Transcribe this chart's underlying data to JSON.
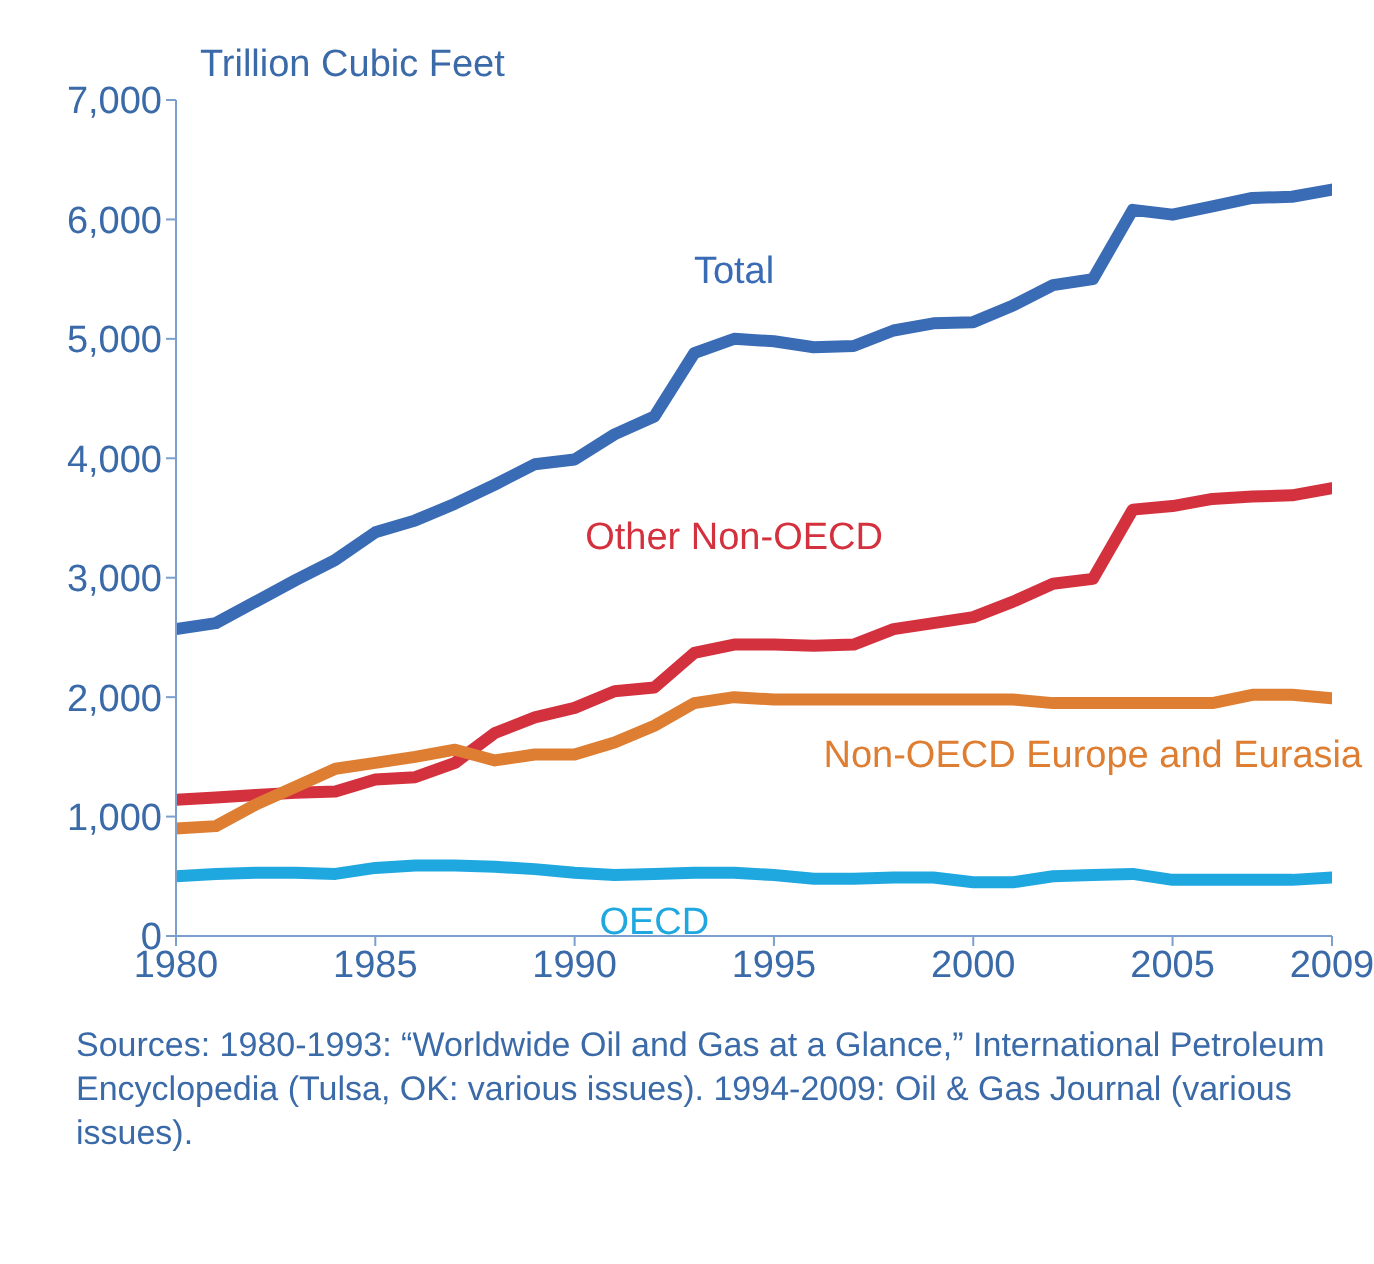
{
  "chart_data": {
    "type": "line",
    "ylabel": "Trillion Cubic Feet",
    "x": [
      1980,
      1981,
      1982,
      1983,
      1984,
      1985,
      1986,
      1987,
      1988,
      1989,
      1990,
      1991,
      1992,
      1993,
      1994,
      1995,
      1996,
      1997,
      1998,
      1999,
      2000,
      2001,
      2002,
      2003,
      2004,
      2005,
      2006,
      2007,
      2008,
      2009
    ],
    "series": [
      {
        "name": "Total",
        "color": "#3a6bb5",
        "values": [
          2570,
          2620,
          2800,
          2980,
          3150,
          3380,
          3480,
          3620,
          3780,
          3950,
          3990,
          4200,
          4350,
          4880,
          5000,
          4980,
          4930,
          4940,
          5070,
          5130,
          5140,
          5280,
          5450,
          5500,
          6080,
          6040,
          6110,
          6180,
          6190,
          6250
        ]
      },
      {
        "name": "Other Non-OECD",
        "color": "#d4313f",
        "values": [
          1140,
          1160,
          1180,
          1200,
          1210,
          1310,
          1330,
          1450,
          1700,
          1830,
          1910,
          2050,
          2080,
          2370,
          2440,
          2440,
          2430,
          2440,
          2570,
          2620,
          2670,
          2800,
          2950,
          2990,
          3570,
          3600,
          3660,
          3680,
          3690,
          3750
        ]
      },
      {
        "name": "Non-OECD Europe and Eurasia",
        "color": "#de7e32",
        "values": [
          900,
          920,
          1100,
          1250,
          1400,
          1450,
          1500,
          1560,
          1470,
          1520,
          1520,
          1620,
          1760,
          1950,
          2000,
          1980,
          1980,
          1980,
          1980,
          1980,
          1980,
          1980,
          1950,
          1950,
          1950,
          1950,
          1950,
          2020,
          2020,
          1990
        ]
      },
      {
        "name": "OECD",
        "color": "#1fa8e0",
        "values": [
          500,
          520,
          530,
          530,
          520,
          570,
          590,
          590,
          580,
          560,
          530,
          510,
          520,
          530,
          530,
          510,
          480,
          480,
          490,
          490,
          450,
          450,
          500,
          510,
          520,
          470,
          470,
          470,
          470,
          490
        ]
      }
    ],
    "xlim": [
      1980,
      2009
    ],
    "xticks": [
      1980,
      1985,
      1990,
      1995,
      2000,
      2005,
      2009
    ],
    "ylim": [
      0,
      7000
    ],
    "yticks": [
      0,
      {
        "value": 1000,
        "label": "1,000"
      },
      {
        "value": 2000,
        "label": "2,000"
      },
      {
        "value": 3000,
        "label": "3,000"
      },
      {
        "value": 4000,
        "label": "4,000"
      },
      {
        "value": 5000,
        "label": "5,000"
      },
      {
        "value": 6000,
        "label": "6,000"
      },
      {
        "value": 7000,
        "label": "7,000"
      }
    ],
    "grid": false,
    "legend": false,
    "marker": "none",
    "line_style": "solid",
    "annotations": [
      "Sources: 1980-1993: “Worldwide Oil and Gas at a Glance,” International Petroleum Encyclopedia (Tulsa, OK: various issues). 1994-2009: Oil & Gas Journal (various issues)."
    ]
  }
}
